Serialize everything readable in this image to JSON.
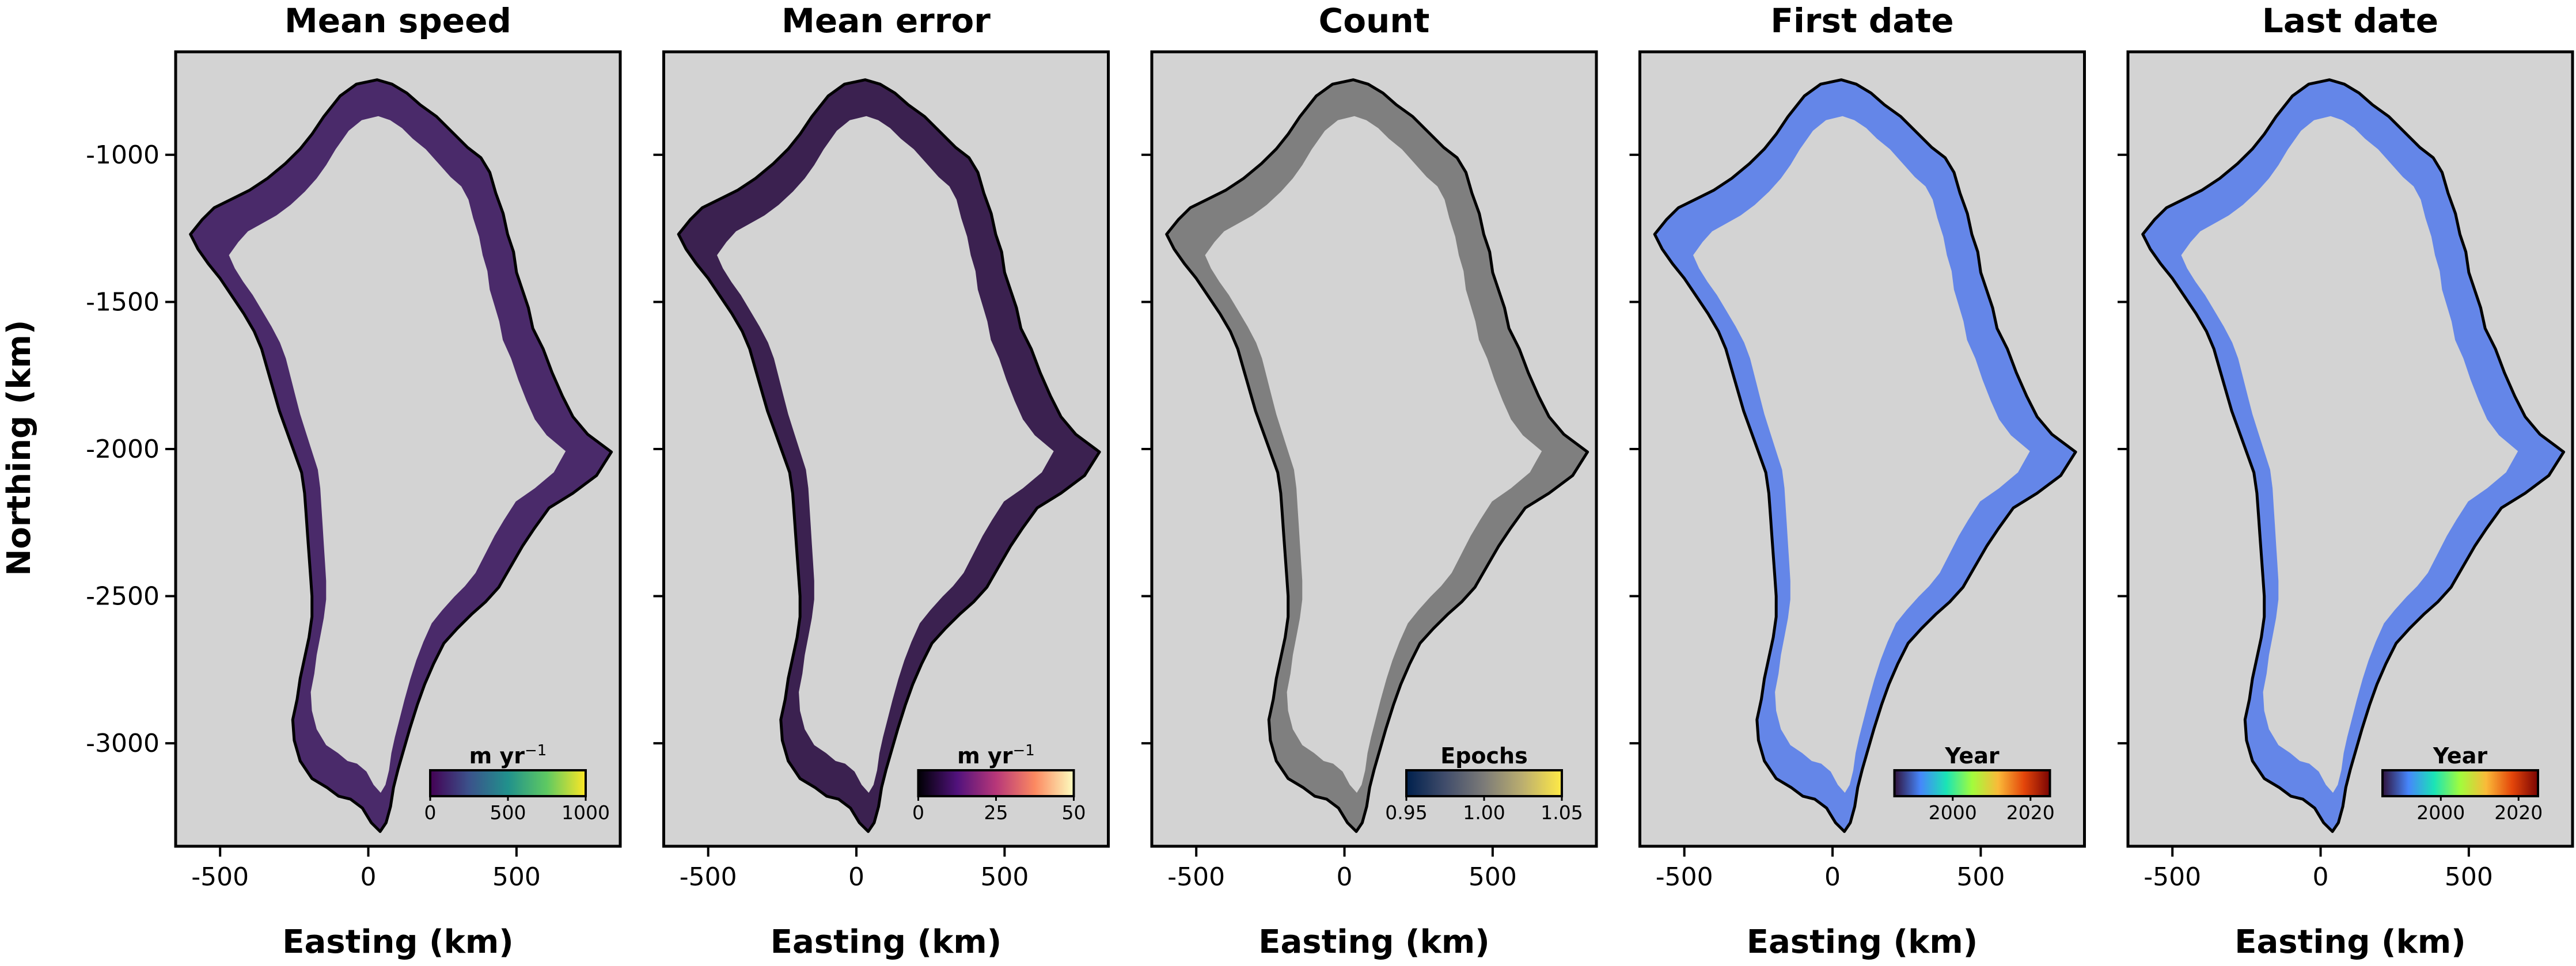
{
  "figure": {
    "ylabel": "Northing (km)",
    "xlabel": "Easting (km)",
    "x_ticks": [
      "-500",
      "0",
      "500"
    ],
    "y_ticks": [
      "-1000",
      "-1500",
      "-2000",
      "-2500",
      "-3000"
    ],
    "x_range": [
      -650,
      850
    ],
    "y_range": [
      -3350,
      -650
    ],
    "background_color": "#d3d3d3",
    "outline_color": "#000000"
  },
  "panels": [
    {
      "title": "Mean speed",
      "fill": "#4a2a6a",
      "colorbar": {
        "label": "m yr",
        "label_sup": "−1",
        "ticks": [
          "0",
          "500",
          "1000"
        ],
        "tick_values": [
          0,
          500,
          1000
        ],
        "range": [
          0,
          1000
        ],
        "cmap": [
          "#440154",
          "#3b528b",
          "#21918c",
          "#5ec962",
          "#fde725"
        ]
      }
    },
    {
      "title": "Mean error",
      "fill": "#3b2150",
      "colorbar": {
        "label": "m yr",
        "label_sup": "−1",
        "ticks": [
          "0",
          "25",
          "50"
        ],
        "tick_values": [
          0,
          25,
          50
        ],
        "range": [
          0,
          50
        ],
        "cmap": [
          "#000004",
          "#51127c",
          "#b73779",
          "#fc8961",
          "#fcfdbf"
        ]
      }
    },
    {
      "title": "Count",
      "fill": "#7f7f7f",
      "colorbar": {
        "label": "Epochs",
        "label_sup": "",
        "ticks": [
          "0.95",
          "1.00",
          "1.05"
        ],
        "tick_values": [
          0.95,
          1.0,
          1.05
        ],
        "range": [
          0.95,
          1.05
        ],
        "cmap": [
          "#00204d",
          "#414d6b",
          "#7c7b78",
          "#bcaf6f",
          "#ffea46"
        ]
      }
    },
    {
      "title": "First date",
      "fill": "#6486e8",
      "colorbar": {
        "label": "Year",
        "label_sup": "",
        "ticks": [
          "2000",
          "2020"
        ],
        "tick_values": [
          2000,
          2020
        ],
        "range": [
          1985,
          2025
        ],
        "cmap": [
          "#30123b",
          "#4686fb",
          "#1ae4b6",
          "#a2fc3c",
          "#faba39",
          "#e4460a",
          "#7a0403"
        ]
      }
    },
    {
      "title": "Last date",
      "fill": "#6486e8",
      "colorbar": {
        "label": "Year",
        "label_sup": "",
        "ticks": [
          "2000",
          "2020"
        ],
        "tick_values": [
          2000,
          2020
        ],
        "range": [
          1985,
          2025
        ],
        "cmap": [
          "#30123b",
          "#4686fb",
          "#1ae4b6",
          "#a2fc3c",
          "#faba39",
          "#e4460a",
          "#7a0403"
        ]
      }
    }
  ]
}
